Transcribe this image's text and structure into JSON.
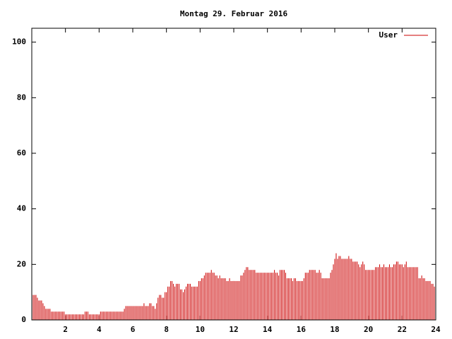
{
  "chart_data": {
    "type": "impulse",
    "title": "Montag 29. Februar 2016",
    "series": [
      {
        "name": "User",
        "color": "#cc0000",
        "values": [
          10,
          9,
          9,
          9,
          8,
          7,
          7,
          7,
          6,
          5,
          4,
          4,
          4,
          4,
          3,
          3,
          3,
          3,
          3,
          3,
          3,
          3,
          3,
          3,
          2,
          2,
          2,
          2,
          2,
          2,
          2,
          2,
          2,
          2,
          2,
          2,
          2,
          2,
          3,
          3,
          3,
          2,
          2,
          2,
          2,
          2,
          2,
          2,
          2,
          3,
          3,
          3,
          3,
          3,
          3,
          3,
          3,
          3,
          3,
          3,
          3,
          3,
          3,
          3,
          3,
          3,
          4,
          5,
          5,
          5,
          5,
          5,
          5,
          5,
          5,
          5,
          5,
          5,
          5,
          5,
          6,
          5,
          5,
          5,
          6,
          6,
          5,
          5,
          4,
          6,
          8,
          9,
          9,
          8,
          8,
          10,
          10,
          12,
          12,
          14,
          14,
          13,
          12,
          13,
          13,
          13,
          11,
          11,
          10,
          11,
          12,
          13,
          13,
          13,
          12,
          12,
          12,
          12,
          12,
          14,
          14,
          15,
          15,
          16,
          17,
          17,
          17,
          17,
          18,
          17,
          17,
          16,
          16,
          15,
          16,
          15,
          15,
          15,
          15,
          14,
          14,
          15,
          14,
          14,
          14,
          14,
          14,
          14,
          14,
          16,
          16,
          17,
          18,
          19,
          19,
          18,
          18,
          18,
          18,
          18,
          17,
          17,
          17,
          17,
          17,
          17,
          17,
          17,
          17,
          17,
          17,
          17,
          17,
          18,
          17,
          17,
          16,
          18,
          18,
          18,
          18,
          17,
          15,
          15,
          15,
          15,
          14,
          15,
          15,
          14,
          14,
          14,
          14,
          14,
          15,
          17,
          17,
          17,
          18,
          18,
          18,
          18,
          18,
          17,
          17,
          18,
          17,
          15,
          15,
          15,
          15,
          15,
          15,
          17,
          18,
          20,
          22,
          24,
          22,
          23,
          23,
          22,
          22,
          22,
          22,
          22,
          23,
          22,
          22,
          21,
          21,
          21,
          21,
          20,
          19,
          20,
          21,
          20,
          18,
          18,
          18,
          18,
          18,
          18,
          18,
          19,
          19,
          19,
          20,
          19,
          19,
          20,
          19,
          19,
          19,
          20,
          19,
          19,
          20,
          20,
          21,
          21,
          20,
          20,
          20,
          19,
          20,
          21,
          19,
          19,
          19,
          19,
          19,
          19,
          19,
          19,
          15,
          15,
          16,
          15,
          15,
          14,
          14,
          14,
          14,
          13,
          13,
          12
        ]
      }
    ],
    "x": [
      0,
      0.083,
      0.167,
      0.25,
      0.333,
      0.417,
      0.5,
      0.583,
      0.667,
      0.75,
      0.833,
      0.917,
      1,
      1.083,
      1.167,
      1.25,
      1.333,
      1.417,
      1.5,
      1.583,
      1.667,
      1.75,
      1.833,
      1.917,
      2,
      2.083,
      2.167,
      2.25,
      2.333,
      2.417,
      2.5,
      2.583,
      2.667,
      2.75,
      2.833,
      2.917,
      3,
      3.083,
      3.167,
      3.25,
      3.333,
      3.417,
      3.5,
      3.583,
      3.667,
      3.75,
      3.833,
      3.917,
      4,
      4.083,
      4.167,
      4.25,
      4.333,
      4.417,
      4.5,
      4.583,
      4.667,
      4.75,
      4.833,
      4.917,
      5,
      5.083,
      5.167,
      5.25,
      5.333,
      5.417,
      5.5,
      5.583,
      5.667,
      5.75,
      5.833,
      5.917,
      6,
      6.083,
      6.167,
      6.25,
      6.333,
      6.417,
      6.5,
      6.583,
      6.667,
      6.75,
      6.833,
      6.917,
      7,
      7.083,
      7.167,
      7.25,
      7.333,
      7.417,
      7.5,
      7.583,
      7.667,
      7.75,
      7.833,
      7.917,
      8,
      8.083,
      8.167,
      8.25,
      8.333,
      8.417,
      8.5,
      8.583,
      8.667,
      8.75,
      8.833,
      8.917,
      9,
      9.083,
      9.167,
      9.25,
      9.333,
      9.417,
      9.5,
      9.583,
      9.667,
      9.75,
      9.833,
      9.917,
      10,
      10.083,
      10.167,
      10.25,
      10.333,
      10.417,
      10.5,
      10.583,
      10.667,
      10.75,
      10.833,
      10.917,
      11,
      11.083,
      11.167,
      11.25,
      11.333,
      11.417,
      11.5,
      11.583,
      11.667,
      11.75,
      11.833,
      11.917,
      12,
      12.083,
      12.167,
      12.25,
      12.333,
      12.417,
      12.5,
      12.583,
      12.667,
      12.75,
      12.833,
      12.917,
      13,
      13.083,
      13.167,
      13.25,
      13.333,
      13.417,
      13.5,
      13.583,
      13.667,
      13.75,
      13.833,
      13.917,
      14,
      14.083,
      14.167,
      14.25,
      14.333,
      14.417,
      14.5,
      14.583,
      14.667,
      14.75,
      14.833,
      14.917,
      15,
      15.083,
      15.167,
      15.25,
      15.333,
      15.417,
      15.5,
      15.583,
      15.667,
      15.75,
      15.833,
      15.917,
      16,
      16.083,
      16.167,
      16.25,
      16.333,
      16.417,
      16.5,
      16.583,
      16.667,
      16.75,
      16.833,
      16.917,
      17,
      17.083,
      17.167,
      17.25,
      17.333,
      17.417,
      17.5,
      17.583,
      17.667,
      17.75,
      17.833,
      17.917,
      18,
      18.083,
      18.167,
      18.25,
      18.333,
      18.417,
      18.5,
      18.583,
      18.667,
      18.75,
      18.833,
      18.917,
      19,
      19.083,
      19.167,
      19.25,
      19.333,
      19.417,
      19.5,
      19.583,
      19.667,
      19.75,
      19.833,
      19.917,
      20,
      20.083,
      20.167,
      20.25,
      20.333,
      20.417,
      20.5,
      20.583,
      20.667,
      20.75,
      20.833,
      20.917,
      21,
      21.083,
      21.167,
      21.25,
      21.333,
      21.417,
      21.5,
      21.583,
      21.667,
      21.75,
      21.833,
      21.917,
      22,
      22.083,
      22.167,
      22.25,
      22.333,
      22.417,
      22.5,
      22.583,
      22.667,
      22.75,
      22.833,
      22.917,
      23,
      23.083,
      23.167,
      23.25,
      23.333,
      23.417,
      23.5,
      23.583,
      23.667,
      23.75,
      23.833,
      23.917
    ],
    "xlim": [
      0,
      24
    ],
    "xticks": [
      2,
      4,
      6,
      8,
      10,
      12,
      14,
      16,
      18,
      20,
      22,
      24
    ],
    "ylim": [
      0,
      105
    ],
    "yticks": [
      0,
      20,
      40,
      60,
      80,
      100
    ],
    "legend": "top-right"
  }
}
